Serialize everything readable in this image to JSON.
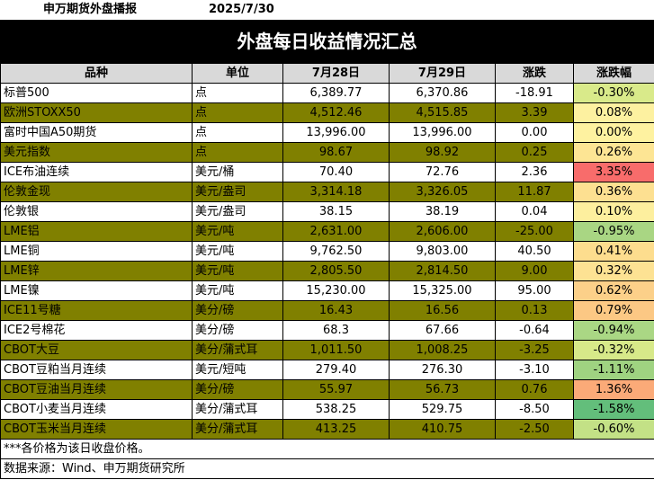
{
  "header": {
    "org": "申万期货外盘播报",
    "date": "2025/7/30"
  },
  "title": "外盘每日收益情况汇总",
  "columns": [
    "品种",
    "单位",
    "7月28日",
    "7月29日",
    "涨跌",
    "涨跌幅"
  ],
  "rows": [
    {
      "name": "标普500",
      "unit": "点",
      "d1": "6,389.77",
      "d2": "6,370.86",
      "chg": "-18.91",
      "pct": "-0.30%",
      "pct_color": "#d9ea8a"
    },
    {
      "name": "欧洲STOXX50",
      "unit": "点",
      "d1": "4,512.46",
      "d2": "4,515.85",
      "chg": "3.39",
      "pct": "0.08%",
      "pct_color": "#fdf1a0"
    },
    {
      "name": "富时中国A50期货",
      "unit": "点",
      "d1": "13,996.00",
      "d2": "13,996.00",
      "chg": "0.00",
      "pct": "0.00%",
      "pct_color": "#fef2a0"
    },
    {
      "name": "美元指数",
      "unit": "点",
      "d1": "98.67",
      "d2": "98.92",
      "chg": "0.25",
      "pct": "0.26%",
      "pct_color": "#fde594"
    },
    {
      "name": "ICE布油连续",
      "unit": "美元/桶",
      "d1": "70.40",
      "d2": "72.76",
      "chg": "2.36",
      "pct": "3.35%",
      "pct_color": "#f86c6b"
    },
    {
      "name": "伦敦金现",
      "unit": "美元/盎司",
      "d1": "3,314.18",
      "d2": "3,326.05",
      "chg": "11.87",
      "pct": "0.36%",
      "pct_color": "#fde091"
    },
    {
      "name": "伦敦银",
      "unit": "美元/盎司",
      "d1": "38.15",
      "d2": "38.19",
      "chg": "0.04",
      "pct": "0.10%",
      "pct_color": "#fdef9e"
    },
    {
      "name": "LME铝",
      "unit": "美元/吨",
      "d1": "2,631.00",
      "d2": "2,606.00",
      "chg": "-25.00",
      "pct": "-0.95%",
      "pct_color": "#a9d683"
    },
    {
      "name": "LME铜",
      "unit": "美元/吨",
      "d1": "9,762.50",
      "d2": "9,803.00",
      "chg": "40.50",
      "pct": "0.41%",
      "pct_color": "#fddd8e"
    },
    {
      "name": "LME锌",
      "unit": "美元/吨",
      "d1": "2,805.50",
      "d2": "2,814.50",
      "chg": "9.00",
      "pct": "0.32%",
      "pct_color": "#fde293"
    },
    {
      "name": "LME镍",
      "unit": "美元/吨",
      "d1": "15,230.00",
      "d2": "15,325.00",
      "chg": "95.00",
      "pct": "0.62%",
      "pct_color": "#fcd089"
    },
    {
      "name": "ICE11号糖",
      "unit": "美分/磅",
      "d1": "16.43",
      "d2": "16.56",
      "chg": "0.13",
      "pct": "0.79%",
      "pct_color": "#fcc884"
    },
    {
      "name": "ICE2号棉花",
      "unit": "美分/磅",
      "d1": "68.3",
      "d2": "67.66",
      "chg": "-0.64",
      "pct": "-0.94%",
      "pct_color": "#aad784"
    },
    {
      "name": "CBOT大豆",
      "unit": "美分/蒲式耳",
      "d1": "1,011.50",
      "d2": "1,008.25",
      "chg": "-3.25",
      "pct": "-0.32%",
      "pct_color": "#d7e989"
    },
    {
      "name": "CBOT豆粕当月连续",
      "unit": "美元/短吨",
      "d1": "279.40",
      "d2": "276.30",
      "chg": "-3.10",
      "pct": "-1.11%",
      "pct_color": "#9fd381"
    },
    {
      "name": "CBOT豆油当月连续",
      "unit": "美分/磅",
      "d1": "55.97",
      "d2": "56.73",
      "chg": "0.76",
      "pct": "1.36%",
      "pct_color": "#fbaa78"
    },
    {
      "name": "CBOT小麦当月连续",
      "unit": "美分/蒲式耳",
      "d1": "538.25",
      "d2": "529.75",
      "chg": "-8.50",
      "pct": "-1.58%",
      "pct_color": "#63be7b"
    },
    {
      "name": "CBOT玉米当月连续",
      "unit": "美分/蒲式耳",
      "d1": "413.25",
      "d2": "410.75",
      "chg": "-2.50",
      "pct": "-0.60%",
      "pct_color": "#c3e186"
    }
  ],
  "notes": {
    "price_note": "***各价格为该日收盘价格。",
    "source": "数据来源：Wind、申万期货研究所"
  }
}
